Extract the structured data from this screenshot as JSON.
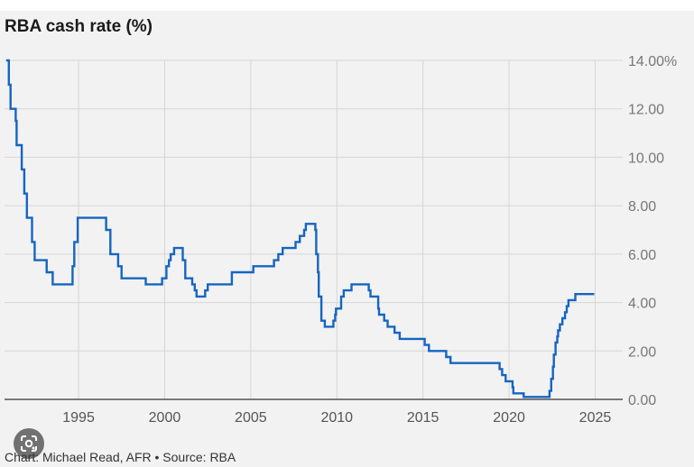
{
  "chart_data": {
    "type": "line",
    "title": "RBA cash rate (%)",
    "source": "Chart: Michael Read, AFR • Source: RBA",
    "x_ticks": [
      "1995",
      "2000",
      "2005",
      "2010",
      "2015",
      "2020",
      "2025"
    ],
    "y_ticks": [
      "0.00",
      "2.00",
      "4.00",
      "6.00",
      "8.00",
      "10.00",
      "12.00",
      "14.00%"
    ],
    "xlim": [
      1990.7,
      2026.6
    ],
    "ylim": [
      0,
      14
    ],
    "grid": true,
    "y_axis_position": "right",
    "line_color": "#1565c0",
    "series": [
      {
        "step": true,
        "points": [
          [
            1990.8,
            14.0
          ],
          [
            1990.95,
            13.0
          ],
          [
            1991.05,
            12.0
          ],
          [
            1991.35,
            11.5
          ],
          [
            1991.4,
            10.5
          ],
          [
            1991.7,
            9.5
          ],
          [
            1991.85,
            8.5
          ],
          [
            1992.0,
            7.5
          ],
          [
            1992.3,
            6.5
          ],
          [
            1992.45,
            5.75
          ],
          [
            1993.15,
            5.25
          ],
          [
            1993.5,
            4.75
          ],
          [
            1994.65,
            5.5
          ],
          [
            1994.75,
            6.5
          ],
          [
            1994.95,
            7.5
          ],
          [
            1996.6,
            7.0
          ],
          [
            1996.85,
            6.0
          ],
          [
            1997.3,
            5.5
          ],
          [
            1997.5,
            5.0
          ],
          [
            1998.9,
            4.75
          ],
          [
            1999.85,
            5.0
          ],
          [
            2000.1,
            5.5
          ],
          [
            2000.25,
            5.75
          ],
          [
            2000.35,
            6.0
          ],
          [
            2000.55,
            6.25
          ],
          [
            2001.05,
            5.75
          ],
          [
            2001.2,
            5.0
          ],
          [
            2001.6,
            4.75
          ],
          [
            2001.75,
            4.5
          ],
          [
            2001.85,
            4.25
          ],
          [
            2002.35,
            4.5
          ],
          [
            2002.5,
            4.75
          ],
          [
            2003.9,
            5.25
          ],
          [
            2005.15,
            5.5
          ],
          [
            2006.35,
            5.75
          ],
          [
            2006.6,
            6.0
          ],
          [
            2006.85,
            6.25
          ],
          [
            2007.6,
            6.5
          ],
          [
            2007.85,
            6.75
          ],
          [
            2008.1,
            7.0
          ],
          [
            2008.2,
            7.25
          ],
          [
            2008.75,
            7.0
          ],
          [
            2008.8,
            6.0
          ],
          [
            2008.9,
            5.25
          ],
          [
            2008.95,
            4.25
          ],
          [
            2009.1,
            3.25
          ],
          [
            2009.3,
            3.0
          ],
          [
            2009.8,
            3.25
          ],
          [
            2009.9,
            3.5
          ],
          [
            2009.95,
            3.75
          ],
          [
            2010.25,
            4.25
          ],
          [
            2010.4,
            4.5
          ],
          [
            2010.85,
            4.75
          ],
          [
            2011.85,
            4.5
          ],
          [
            2011.95,
            4.25
          ],
          [
            2012.4,
            3.75
          ],
          [
            2012.45,
            3.5
          ],
          [
            2012.75,
            3.25
          ],
          [
            2012.95,
            3.0
          ],
          [
            2013.35,
            2.75
          ],
          [
            2013.65,
            2.5
          ],
          [
            2015.1,
            2.25
          ],
          [
            2015.35,
            2.0
          ],
          [
            2016.35,
            1.75
          ],
          [
            2016.6,
            1.5
          ],
          [
            2019.45,
            1.25
          ],
          [
            2019.6,
            1.0
          ],
          [
            2019.8,
            0.75
          ],
          [
            2020.2,
            0.5
          ],
          [
            2020.25,
            0.25
          ],
          [
            2020.85,
            0.1
          ],
          [
            2022.35,
            0.35
          ],
          [
            2022.45,
            0.85
          ],
          [
            2022.55,
            1.35
          ],
          [
            2022.6,
            1.85
          ],
          [
            2022.7,
            2.35
          ],
          [
            2022.8,
            2.6
          ],
          [
            2022.85,
            2.85
          ],
          [
            2022.95,
            3.1
          ],
          [
            2023.1,
            3.35
          ],
          [
            2023.25,
            3.6
          ],
          [
            2023.35,
            3.85
          ],
          [
            2023.45,
            4.1
          ],
          [
            2023.85,
            4.35
          ],
          [
            2024.95,
            4.35
          ]
        ]
      }
    ]
  }
}
